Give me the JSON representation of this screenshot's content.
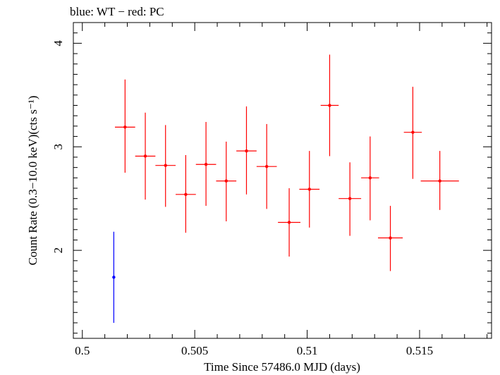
{
  "chart_data": {
    "type": "scatter",
    "title": "blue: WT − red: PC",
    "xlabel": "Time Since 57486.0 MJD (days)",
    "ylabel": "Count Rate (0.3−10.0 keV)(cts s⁻¹)",
    "xlim": [
      0.4996,
      0.5182
    ],
    "ylim": [
      1.15,
      4.2
    ],
    "grid": false,
    "x_ticks": [
      {
        "value": 0.5,
        "label": "0.5"
      },
      {
        "value": 0.505,
        "label": "0.505"
      },
      {
        "value": 0.51,
        "label": "0.51"
      },
      {
        "value": 0.515,
        "label": "0.515"
      }
    ],
    "y_ticks": [
      {
        "value": 2,
        "label": "2"
      },
      {
        "value": 3,
        "label": "3"
      },
      {
        "value": 4,
        "label": "4"
      }
    ],
    "series": [
      {
        "color": "#0000ff",
        "points": [
          {
            "x": 0.5014,
            "y": 1.74,
            "xerr": 0.0,
            "ylo": 1.3,
            "yhi": 2.18
          }
        ]
      },
      {
        "color": "#ff0000",
        "points": [
          {
            "x": 0.5019,
            "y": 3.19,
            "xerr": 0.00045,
            "ylo": 2.75,
            "yhi": 3.65
          },
          {
            "x": 0.5028,
            "y": 2.91,
            "xerr": 0.00045,
            "ylo": 2.49,
            "yhi": 3.33
          },
          {
            "x": 0.5037,
            "y": 2.82,
            "xerr": 0.00045,
            "ylo": 2.42,
            "yhi": 3.21
          },
          {
            "x": 0.5046,
            "y": 2.54,
            "xerr": 0.00045,
            "ylo": 2.17,
            "yhi": 2.92
          },
          {
            "x": 0.5055,
            "y": 2.83,
            "xerr": 0.00045,
            "ylo": 2.43,
            "yhi": 3.24
          },
          {
            "x": 0.5064,
            "y": 2.67,
            "xerr": 0.00045,
            "ylo": 2.28,
            "yhi": 3.05
          },
          {
            "x": 0.5073,
            "y": 2.96,
            "xerr": 0.00045,
            "ylo": 2.54,
            "yhi": 3.39
          },
          {
            "x": 0.5082,
            "y": 2.81,
            "xerr": 0.00045,
            "ylo": 2.4,
            "yhi": 3.22
          },
          {
            "x": 0.5092,
            "y": 2.27,
            "xerr": 0.0005,
            "ylo": 1.94,
            "yhi": 2.6
          },
          {
            "x": 0.5101,
            "y": 2.59,
            "xerr": 0.00045,
            "ylo": 2.22,
            "yhi": 2.96
          },
          {
            "x": 0.511,
            "y": 3.4,
            "xerr": 0.0004,
            "ylo": 2.91,
            "yhi": 3.89
          },
          {
            "x": 0.5119,
            "y": 2.5,
            "xerr": 0.0005,
            "ylo": 2.14,
            "yhi": 2.85
          },
          {
            "x": 0.5128,
            "y": 2.7,
            "xerr": 0.0004,
            "ylo": 2.29,
            "yhi": 3.1
          },
          {
            "x": 0.5137,
            "y": 2.12,
            "xerr": 0.00055,
            "ylo": 1.8,
            "yhi": 2.43
          },
          {
            "x": 0.5147,
            "y": 3.14,
            "xerr": 0.0004,
            "ylo": 2.69,
            "yhi": 3.58
          },
          {
            "x": 0.5159,
            "y": 2.67,
            "xerr": 0.00085,
            "ylo": 2.39,
            "yhi": 2.96
          }
        ]
      }
    ]
  }
}
